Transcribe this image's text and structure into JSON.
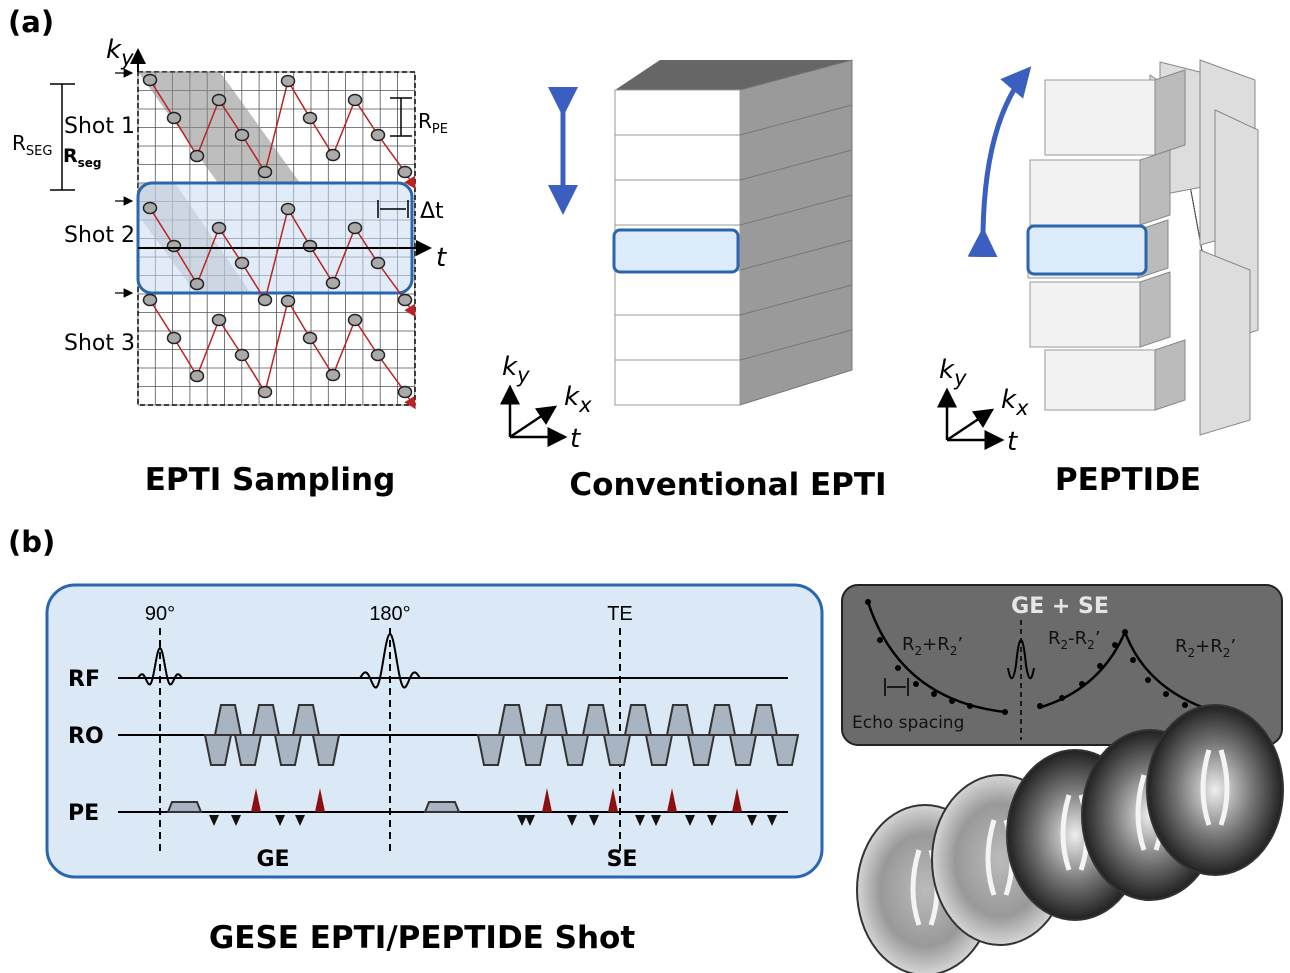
{
  "panel_a": {
    "label": "(a)",
    "sampling": {
      "caption": "EPTI Sampling",
      "ky": {
        "main": "k",
        "sub": "y"
      },
      "t": "t",
      "shots": [
        "Shot 1",
        "Shot 2",
        "Shot 3"
      ],
      "r_seg": {
        "main": "R",
        "sub": "SEG"
      },
      "r_seg_bold": {
        "main": "R",
        "sub": "seg"
      },
      "r_pe": {
        "main": "R",
        "sub": "PE"
      },
      "delta_t": "Δt"
    },
    "conventional": {
      "caption": "Conventional EPTI",
      "ky": {
        "main": "k",
        "sub": "y"
      },
      "kx": {
        "main": "k",
        "sub": "x"
      },
      "t": "t"
    },
    "peptide": {
      "caption": "PEPTIDE",
      "ky": {
        "main": "k",
        "sub": "y"
      },
      "kx": {
        "main": "k",
        "sub": "x"
      },
      "t": "t"
    }
  },
  "panel_b": {
    "label": "(b)",
    "sequence": {
      "caption": "GESE EPTI/PEPTIDE Shot",
      "pulses": [
        "90°",
        "180°",
        "TE"
      ],
      "rows": [
        "RF",
        "RO",
        "PE"
      ],
      "echoes": [
        "GE",
        "SE"
      ]
    },
    "decay": {
      "title": "GE + SE",
      "left": {
        "a": "R",
        "a_sub": "2",
        "op": "+",
        "b": "R",
        "b_sub": "2",
        "prime": "’"
      },
      "middle": {
        "a": "R",
        "a_sub": "2",
        "op": "-",
        "b": "R",
        "b_sub": "2",
        "prime": "’"
      },
      "right": {
        "a": "R",
        "a_sub": "2",
        "op": "+",
        "b": "R",
        "b_sub": "2",
        "prime": "’"
      },
      "echo_spacing": "Echo spacing"
    }
  }
}
